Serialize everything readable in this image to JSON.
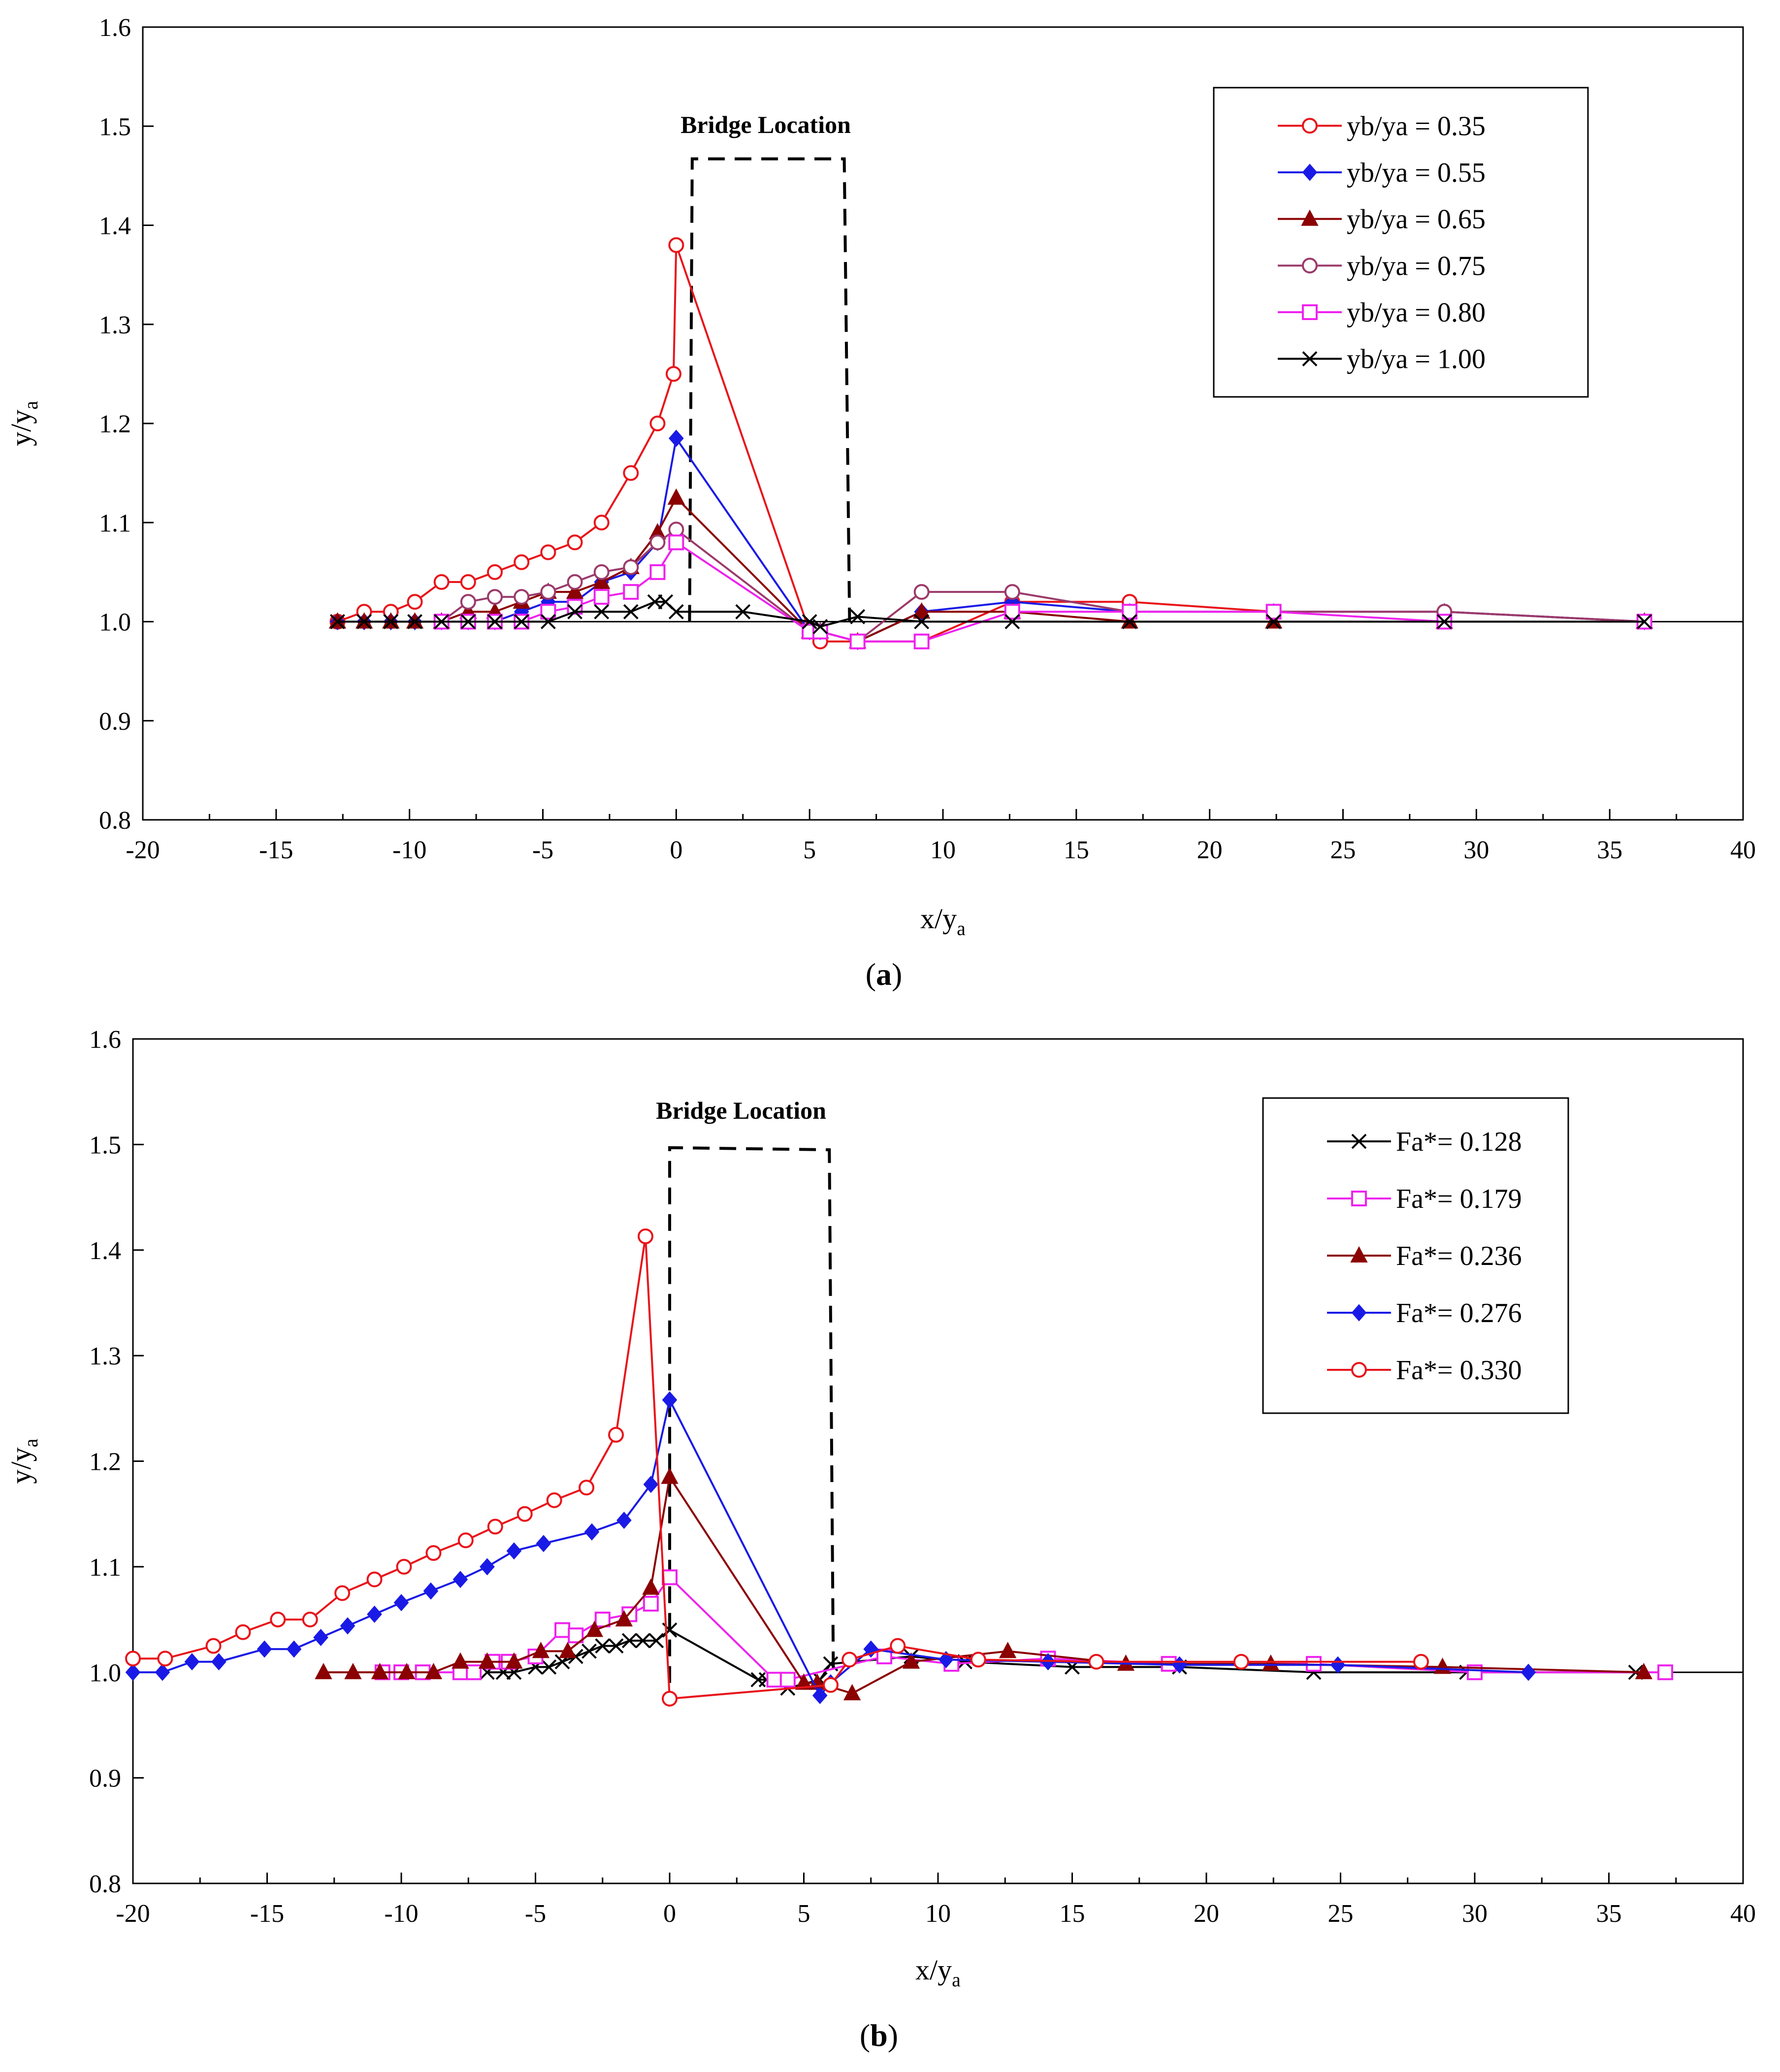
{
  "chart_data": [
    {
      "type": "line",
      "panel_label": "a",
      "xlabel": "x/y",
      "xlabel_sub": "a",
      "ylabel": "y/y",
      "ylabel_sub": "a",
      "xlim": [
        -20,
        40
      ],
      "ylim": [
        0.8,
        1.6
      ],
      "xticks": [
        -20,
        -15,
        -10,
        -5,
        0,
        5,
        10,
        15,
        20,
        25,
        30,
        35,
        40
      ],
      "xtick_labels": [
        "-20",
        "-15",
        "-10",
        "-5",
        "0",
        "5",
        "10",
        "15",
        "20",
        "25",
        "30",
        "35",
        "40"
      ],
      "yticks": [
        0.8,
        0.9,
        1.0,
        1.1,
        1.2,
        1.3,
        1.4,
        1.5,
        1.6
      ],
      "ytick_labels": [
        "0.8",
        "0.9",
        "1.0",
        "1.1",
        "1.2",
        "1.3",
        "1.4",
        "1.5",
        "1.6"
      ],
      "bridge_label": "Bridge Location",
      "bridge_box": {
        "x": [
          0.5,
          0.6,
          6.3,
          6.5
        ],
        "y": [
          1.0,
          1.467,
          1.467,
          1.0
        ]
      },
      "legend_position": "top-right",
      "baseline": {
        "y": 1.0,
        "x": [
          -12.7,
          40
        ]
      },
      "series": [
        {
          "name": "yb/ya = 0.35",
          "color": "#e8141b",
          "marker": "circle-open",
          "x": [
            -12.7,
            -11.7,
            -10.7,
            -9.8,
            -8.8,
            -7.8,
            -6.8,
            -5.8,
            -4.8,
            -3.8,
            -2.8,
            -1.7,
            -0.7,
            -0.1,
            0.0,
            5.0,
            5.4,
            6.8,
            9.2,
            12.6,
            17.0,
            22.4,
            28.8,
            36.3
          ],
          "y": [
            1.0,
            1.01,
            1.01,
            1.02,
            1.04,
            1.04,
            1.05,
            1.06,
            1.07,
            1.08,
            1.1,
            1.15,
            1.2,
            1.25,
            1.38,
            0.99,
            0.98,
            0.98,
            0.98,
            1.02,
            1.02,
            1.01,
            1.01,
            1.0
          ]
        },
        {
          "name": "yb/ya = 0.55",
          "color": "#1a1ae6",
          "marker": "diamond-filled",
          "x": [
            -12.7,
            -11.7,
            -10.7,
            -9.8,
            -8.8,
            -7.8,
            -6.8,
            -5.8,
            -4.8,
            -3.8,
            -2.8,
            -1.7,
            -0.7,
            0.0,
            5.0,
            5.4,
            6.8,
            9.2,
            12.6,
            17.0,
            22.4,
            28.8,
            36.3
          ],
          "y": [
            1.0,
            1.0,
            1.0,
            1.0,
            1.0,
            1.0,
            1.0,
            1.01,
            1.02,
            1.02,
            1.04,
            1.05,
            1.08,
            1.185,
            0.99,
            0.99,
            0.98,
            1.01,
            1.02,
            1.01,
            1.01,
            1.01,
            1.0
          ]
        },
        {
          "name": "yb/ya = 0.65",
          "color": "#8b0000",
          "marker": "triangle-filled",
          "x": [
            -12.7,
            -11.7,
            -10.7,
            -9.8,
            -8.8,
            -7.8,
            -6.8,
            -5.8,
            -4.8,
            -3.8,
            -2.8,
            -1.7,
            -0.7,
            0.0,
            5.0,
            5.4,
            6.8,
            9.2,
            12.6,
            17.0,
            22.4,
            28.8,
            36.3
          ],
          "y": [
            1.0,
            1.0,
            1.0,
            1.0,
            1.0,
            1.01,
            1.01,
            1.02,
            1.03,
            1.03,
            1.04,
            1.055,
            1.09,
            1.125,
            0.99,
            0.99,
            0.98,
            1.01,
            1.01,
            1.0,
            1.0,
            1.0,
            1.0
          ]
        },
        {
          "name": "yb/ya = 0.75",
          "color": "#9b3a6a",
          "marker": "circle-open",
          "x": [
            -8.8,
            -7.8,
            -6.8,
            -5.8,
            -4.8,
            -3.8,
            -2.8,
            -1.7,
            -0.7,
            0.0,
            5.0,
            5.4,
            6.8,
            9.2,
            12.6,
            17.0,
            22.4,
            28.8,
            36.3
          ],
          "y": [
            1.0,
            1.02,
            1.025,
            1.025,
            1.03,
            1.04,
            1.05,
            1.055,
            1.08,
            1.093,
            0.99,
            0.99,
            0.98,
            1.03,
            1.03,
            1.01,
            1.01,
            1.01,
            1.0
          ]
        },
        {
          "name": "yb/ya = 0.80",
          "color": "#ee22ee",
          "marker": "square-open",
          "x": [
            -8.8,
            -7.8,
            -6.8,
            -5.8,
            -4.8,
            -3.8,
            -2.8,
            -1.7,
            -0.7,
            0.0,
            5.0,
            5.4,
            6.8,
            9.2,
            12.6,
            17.0,
            22.4,
            28.8,
            36.3
          ],
          "y": [
            1.0,
            1.0,
            1.0,
            1.0,
            1.01,
            1.015,
            1.025,
            1.03,
            1.05,
            1.08,
            0.99,
            0.99,
            0.98,
            0.98,
            1.01,
            1.01,
            1.01,
            1.0,
            1.0
          ]
        },
        {
          "name": "yb/ya = 1.00",
          "color": "#000000",
          "marker": "x",
          "x": [
            -12.7,
            -11.7,
            -10.7,
            -9.8,
            -8.8,
            -7.8,
            -6.8,
            -5.8,
            -4.8,
            -3.8,
            -2.8,
            -1.7,
            -0.8,
            -0.4,
            0.0,
            2.5,
            5.0,
            5.4,
            6.8,
            9.2,
            12.6,
            17.0,
            22.4,
            28.8,
            36.3
          ],
          "y": [
            1.0,
            1.0,
            1.0,
            1.0,
            1.0,
            1.0,
            1.0,
            1.0,
            1.0,
            1.01,
            1.01,
            1.01,
            1.02,
            1.02,
            1.01,
            1.01,
            1.0,
            0.995,
            1.005,
            1.0,
            1.0,
            1.0,
            1.0,
            1.0,
            1.0
          ]
        }
      ]
    },
    {
      "type": "line",
      "panel_label": "b",
      "xlabel": "x/y",
      "xlabel_sub": "a",
      "ylabel": "y/y",
      "ylabel_sub": "a",
      "xlim": [
        -20,
        40
      ],
      "ylim": [
        0.8,
        1.6
      ],
      "xticks": [
        -20,
        -15,
        -10,
        -5,
        0,
        5,
        10,
        15,
        20,
        25,
        30,
        35,
        40
      ],
      "xtick_labels": [
        "-20",
        "-15",
        "-10",
        "-5",
        "0",
        "5",
        "10",
        "15",
        "20",
        "25",
        "30",
        "35",
        "40"
      ],
      "yticks": [
        0.8,
        0.9,
        1.0,
        1.1,
        1.2,
        1.3,
        1.4,
        1.5,
        1.6
      ],
      "ytick_labels": [
        "0.8",
        "0.9",
        "1.0",
        "1.1",
        "1.2",
        "1.3",
        "1.4",
        "1.5",
        "1.6"
      ],
      "bridge_label": "Bridge Location",
      "bridge_box": {
        "x": [
          0.0,
          0.0,
          5.95,
          6.1
        ],
        "y": [
          0.99,
          1.497,
          1.495,
          1.0
        ]
      },
      "legend_position": "top-right",
      "baseline": {
        "y": 1.0,
        "x": [
          36.0,
          40
        ]
      },
      "series": [
        {
          "name": "Fa*= 0.128",
          "color": "#000000",
          "marker": "x",
          "x": [
            -6.8,
            -6.2,
            -5.8,
            -5.0,
            -4.5,
            -4.0,
            -3.5,
            -3.0,
            -2.5,
            -2.0,
            -1.5,
            -1.0,
            -0.5,
            0.0,
            3.3,
            3.6,
            4.4,
            5.6,
            6.0,
            9.0,
            11.0,
            15.0,
            19.0,
            24.0,
            29.7,
            36.0
          ],
          "y": [
            1.0,
            1.0,
            1.0,
            1.005,
            1.005,
            1.01,
            1.015,
            1.02,
            1.025,
            1.025,
            1.03,
            1.03,
            1.03,
            1.04,
            0.993,
            0.993,
            0.985,
            0.993,
            1.008,
            1.015,
            1.01,
            1.005,
            1.005,
            1.0,
            1.0,
            1.0
          ]
        },
        {
          "name": "Fa*= 0.179",
          "color": "#ee22ee",
          "marker": "square-open",
          "x": [
            -10.7,
            -10.0,
            -9.2,
            -7.8,
            -7.3,
            -6.6,
            -6.0,
            -5.0,
            -4.0,
            -3.5,
            -2.5,
            -1.5,
            -0.7,
            0.0,
            3.9,
            4.4,
            8.0,
            10.5,
            14.1,
            18.6,
            24.0,
            30.0,
            37.1
          ],
          "y": [
            1.0,
            1.0,
            1.0,
            1.0,
            1.0,
            1.01,
            1.01,
            1.015,
            1.04,
            1.035,
            1.05,
            1.055,
            1.065,
            1.09,
            0.993,
            0.993,
            1.015,
            1.008,
            1.013,
            1.008,
            1.008,
            1.0,
            1.0
          ]
        },
        {
          "name": "Fa*= 0.236",
          "color": "#8b0000",
          "marker": "triangle-filled",
          "x": [
            -12.9,
            -11.8,
            -10.8,
            -9.8,
            -8.8,
            -7.8,
            -6.8,
            -5.8,
            -4.8,
            -3.8,
            -2.8,
            -1.7,
            -0.7,
            0.0,
            5.0,
            5.5,
            6.8,
            9.0,
            12.6,
            17.0,
            22.4,
            28.8,
            36.3
          ],
          "y": [
            1.0,
            1.0,
            1.0,
            1.0,
            1.0,
            1.01,
            1.01,
            1.01,
            1.02,
            1.02,
            1.04,
            1.05,
            1.08,
            1.185,
            0.99,
            0.99,
            0.98,
            1.01,
            1.02,
            1.008,
            1.008,
            1.005,
            1.0
          ]
        },
        {
          "name": "Fa*= 0.276",
          "color": "#1a1ae6",
          "marker": "diamond-filled",
          "x": [
            -20.0,
            -18.9,
            -17.8,
            -16.8,
            -15.1,
            -14.0,
            -13.0,
            -12.0,
            -11.0,
            -10.0,
            -8.9,
            -7.8,
            -6.8,
            -5.8,
            -4.7,
            -2.9,
            -1.7,
            -0.7,
            0.0,
            5.6,
            6.0,
            7.5,
            10.3,
            14.1,
            19.0,
            24.9,
            32.0
          ],
          "y": [
            1.0,
            1.0,
            1.01,
            1.01,
            1.022,
            1.022,
            1.033,
            1.044,
            1.055,
            1.066,
            1.077,
            1.088,
            1.1,
            1.115,
            1.122,
            1.133,
            1.144,
            1.178,
            1.258,
            0.978,
            0.99,
            1.022,
            1.012,
            1.01,
            1.007,
            1.007,
            1.0
          ]
        },
        {
          "name": "Fa*= 0.330",
          "color": "#e8141b",
          "marker": "circle-open",
          "x": [
            -20.0,
            -18.8,
            -17.0,
            -15.9,
            -14.6,
            -13.4,
            -12.2,
            -11.0,
            -9.9,
            -8.8,
            -7.6,
            -6.5,
            -5.4,
            -4.3,
            -3.1,
            -2.0,
            -0.9,
            0.0,
            6.0,
            6.7,
            8.5,
            11.5,
            15.9,
            21.3,
            28.0
          ],
          "y": [
            1.013,
            1.013,
            1.025,
            1.038,
            1.05,
            1.05,
            1.075,
            1.088,
            1.1,
            1.113,
            1.125,
            1.138,
            1.15,
            1.163,
            1.175,
            1.225,
            1.413,
            0.975,
            0.988,
            1.012,
            1.025,
            1.012,
            1.01,
            1.01,
            1.01
          ]
        }
      ]
    }
  ]
}
